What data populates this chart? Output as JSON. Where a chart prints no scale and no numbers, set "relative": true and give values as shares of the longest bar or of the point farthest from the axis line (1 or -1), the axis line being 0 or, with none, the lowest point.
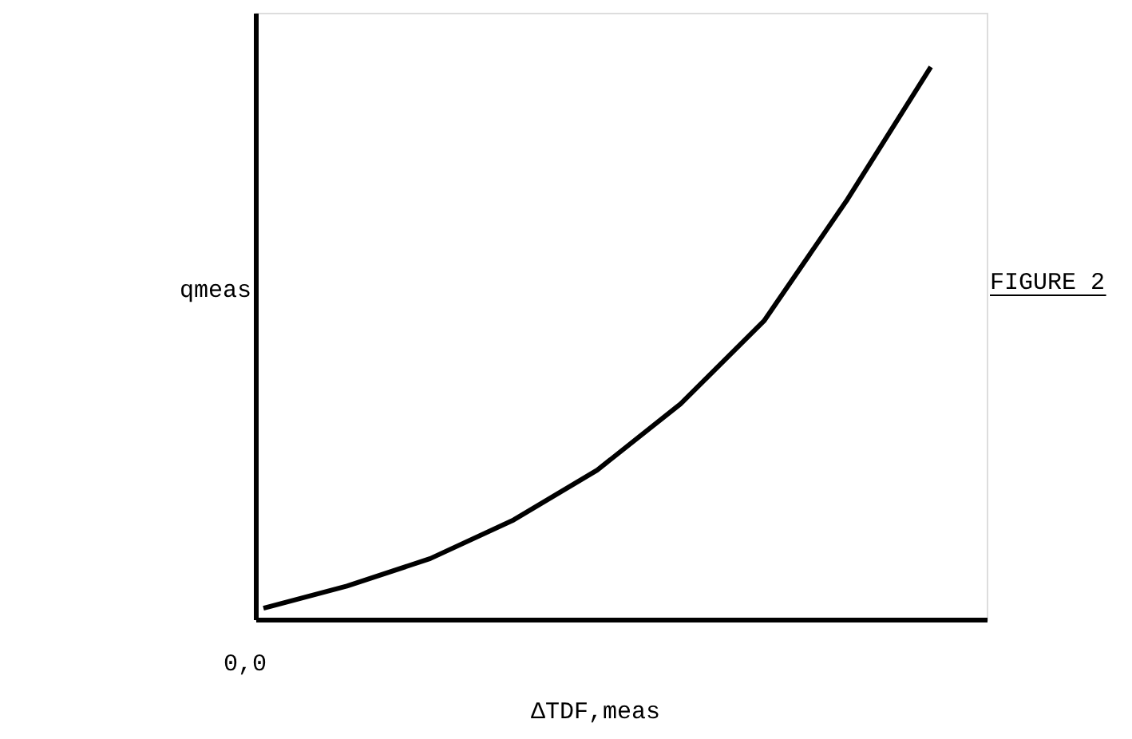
{
  "chart_data": {
    "type": "line",
    "relative": true,
    "categories": [
      null,
      null,
      null,
      null,
      null,
      null,
      null,
      null,
      null
    ],
    "series": [
      {
        "color": "#000000",
        "values": [
          0.02,
          0.06,
          0.11,
          0.18,
          0.27,
          0.39,
          0.54,
          0.76,
          1
        ]
      }
    ],
    "xlabel": "ΔTDF,meas",
    "ylabel": "qmeas",
    "annotations": [
      "0,0",
      "FIGURE 2"
    ],
    "grid": false,
    "marker": "none",
    "line_style": "solid",
    "tick_labels": false
  }
}
